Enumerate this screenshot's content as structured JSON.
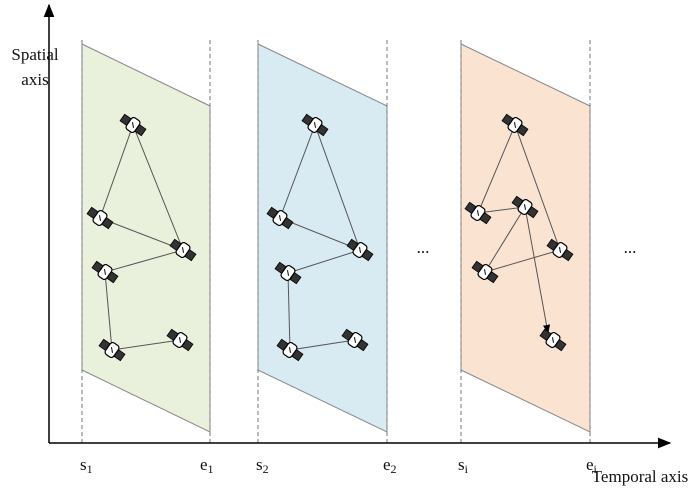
{
  "axes": {
    "spatial": [
      "Spatial",
      "axis"
    ],
    "temporal": "Temporal axis"
  },
  "time_marks": [
    {
      "base": "s",
      "sub": "1"
    },
    {
      "base": "e",
      "sub": "1"
    },
    {
      "base": "s",
      "sub": "2"
    },
    {
      "base": "e",
      "sub": "2"
    },
    {
      "base": "s",
      "sub": "i"
    },
    {
      "base": "e",
      "sub": "i"
    }
  ],
  "ellipses": [
    "...",
    "..."
  ]
}
